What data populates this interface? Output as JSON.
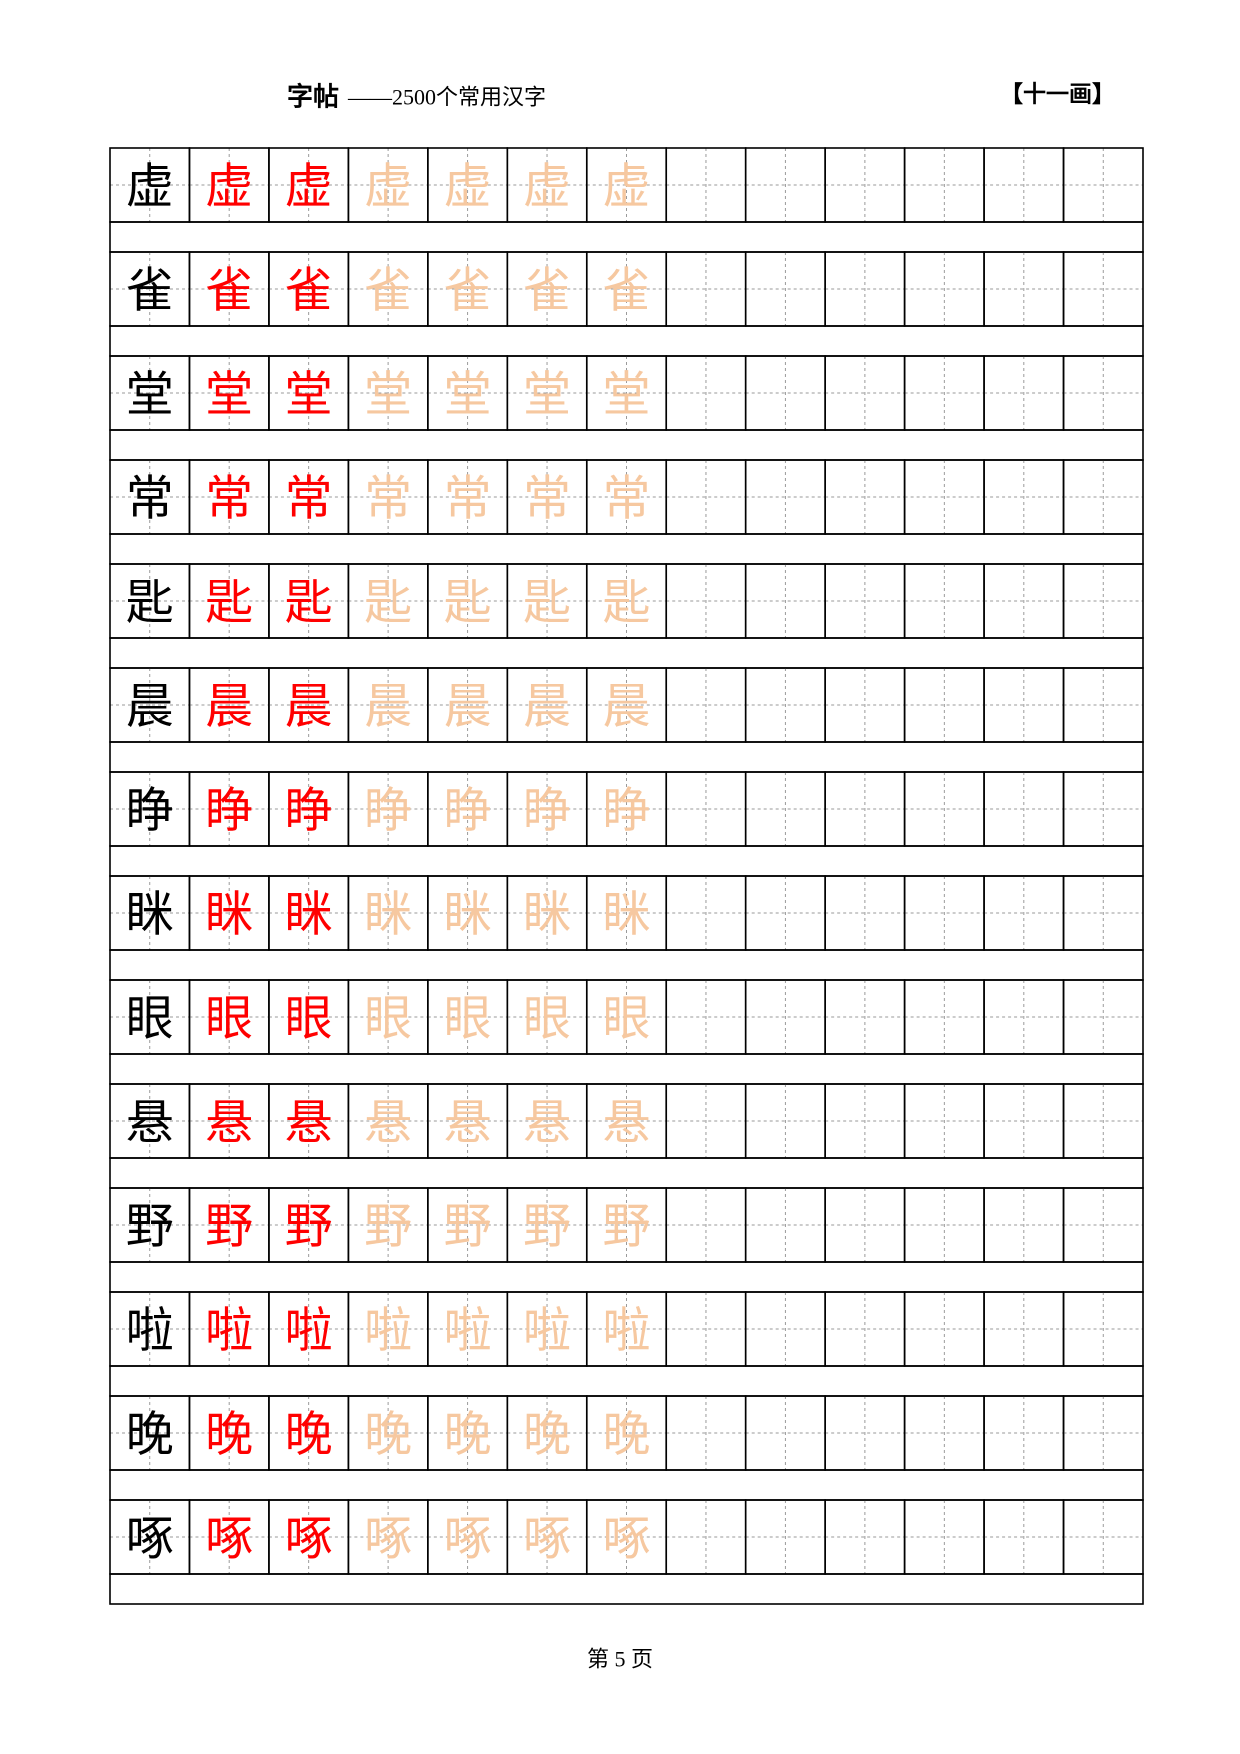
{
  "header": {
    "title": "字帖",
    "subtitle": "——2500个常用汉字",
    "stroke_group": "【十一画】"
  },
  "rows": [
    {
      "char": "虚"
    },
    {
      "char": "雀"
    },
    {
      "char": "堂"
    },
    {
      "char": "常"
    },
    {
      "char": "匙"
    },
    {
      "char": "晨"
    },
    {
      "char": "睁"
    },
    {
      "char": "眯"
    },
    {
      "char": "眼"
    },
    {
      "char": "悬"
    },
    {
      "char": "野"
    },
    {
      "char": "啦"
    },
    {
      "char": "晚"
    },
    {
      "char": "啄"
    }
  ],
  "footer": {
    "page": "第 5 页"
  }
}
